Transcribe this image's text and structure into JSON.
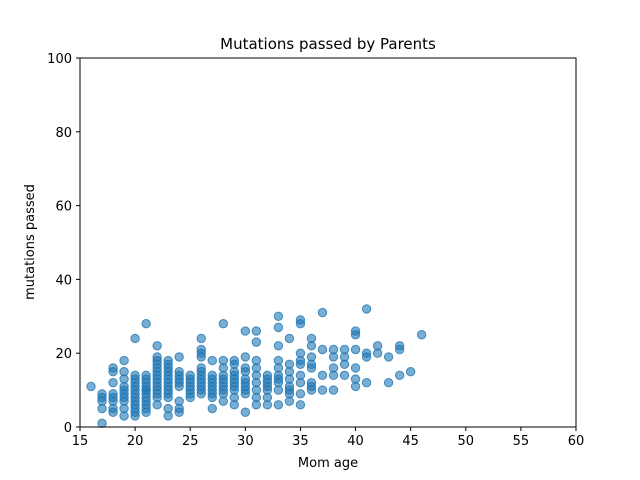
{
  "chart_data": {
    "type": "scatter",
    "title": "Mutations passed by Parents",
    "xlabel": "Mom age",
    "ylabel": "mutations passed",
    "xlim": [
      15,
      60
    ],
    "ylim": [
      0,
      100
    ],
    "xticks": [
      15,
      20,
      25,
      30,
      35,
      40,
      45,
      50,
      55,
      60
    ],
    "yticks": [
      0,
      20,
      40,
      60,
      80,
      100
    ],
    "grid": false,
    "color": "#1f77b4",
    "series": [
      {
        "x": [
          16,
          17,
          17,
          17,
          17,
          17,
          18,
          18,
          18,
          18,
          18,
          18,
          18,
          18,
          19,
          19,
          19,
          19,
          19,
          19,
          19,
          19,
          19,
          19,
          20,
          20,
          20,
          20,
          20,
          20,
          20,
          20,
          20,
          20,
          20,
          20,
          20,
          21,
          21,
          21,
          21,
          21,
          21,
          21,
          21,
          21,
          21,
          21,
          21,
          21,
          22,
          22,
          22,
          22,
          22,
          22,
          22,
          22,
          22,
          22,
          22,
          22,
          22,
          22,
          23,
          23,
          23,
          23,
          23,
          23,
          23,
          23,
          23,
          23,
          23,
          23,
          23,
          24,
          24,
          24,
          24,
          24,
          24,
          24,
          24,
          24,
          25,
          25,
          25,
          25,
          25,
          25,
          25,
          26,
          26,
          26,
          26,
          26,
          26,
          26,
          26,
          26,
          26,
          26,
          26,
          27,
          27,
          27,
          27,
          27,
          27,
          27,
          27,
          27,
          28,
          28,
          28,
          28,
          28,
          28,
          28,
          28,
          28,
          28,
          29,
          29,
          29,
          29,
          29,
          29,
          29,
          29,
          29,
          29,
          30,
          30,
          30,
          30,
          30,
          30,
          30,
          30,
          30,
          30,
          31,
          31,
          31,
          31,
          31,
          31,
          31,
          31,
          31,
          32,
          32,
          32,
          32,
          32,
          32,
          32,
          33,
          33,
          33,
          33,
          33,
          33,
          33,
          33,
          33,
          33,
          34,
          34,
          34,
          34,
          34,
          34,
          34,
          34,
          35,
          35,
          35,
          35,
          35,
          35,
          35,
          35,
          35,
          36,
          36,
          36,
          36,
          36,
          36,
          36,
          36,
          37,
          37,
          37,
          37,
          38,
          38,
          38,
          38,
          38,
          39,
          39,
          39,
          39,
          40,
          40,
          40,
          40,
          40,
          40,
          41,
          41,
          41,
          41,
          42,
          42,
          43,
          43,
          44,
          44,
          44,
          45,
          46
        ],
        "y": [
          11,
          8,
          7,
          5,
          1,
          9,
          16,
          15,
          12,
          9,
          8,
          7,
          5,
          4,
          18,
          15,
          13,
          11,
          10,
          9,
          8,
          7,
          5,
          3,
          24,
          14,
          12,
          11,
          10,
          9,
          8,
          7,
          6,
          5,
          4,
          3,
          13,
          28,
          14,
          13,
          12,
          11,
          10,
          9,
          8,
          7,
          6,
          5,
          4,
          10,
          22,
          19,
          18,
          17,
          16,
          15,
          14,
          13,
          12,
          11,
          10,
          9,
          8,
          6,
          18,
          17,
          16,
          15,
          14,
          13,
          12,
          11,
          10,
          9,
          8,
          5,
          3,
          19,
          15,
          14,
          13,
          12,
          11,
          7,
          5,
          4,
          14,
          13,
          12,
          11,
          10,
          9,
          8,
          24,
          21,
          20,
          19,
          16,
          15,
          14,
          13,
          12,
          11,
          10,
          9,
          18,
          14,
          13,
          12,
          11,
          10,
          9,
          8,
          5,
          28,
          18,
          16,
          14,
          13,
          12,
          11,
          10,
          9,
          7,
          18,
          17,
          15,
          14,
          13,
          12,
          11,
          10,
          8,
          6,
          26,
          19,
          16,
          15,
          13,
          12,
          11,
          10,
          9,
          4,
          26,
          23,
          18,
          16,
          14,
          12,
          10,
          8,
          6,
          14,
          13,
          12,
          11,
          10,
          8,
          6,
          30,
          27,
          22,
          18,
          16,
          14,
          13,
          12,
          10,
          6,
          24,
          17,
          15,
          13,
          11,
          10,
          9,
          7,
          29,
          28,
          20,
          18,
          17,
          14,
          12,
          9,
          6,
          24,
          22,
          19,
          17,
          16,
          12,
          11,
          10,
          31,
          21,
          14,
          10,
          21,
          19,
          16,
          14,
          10,
          21,
          19,
          17,
          14,
          26,
          25,
          21,
          16,
          13,
          11,
          32,
          20,
          19,
          12,
          22,
          20,
          19,
          12,
          22,
          21,
          14,
          15,
          25
        ]
      }
    ]
  }
}
